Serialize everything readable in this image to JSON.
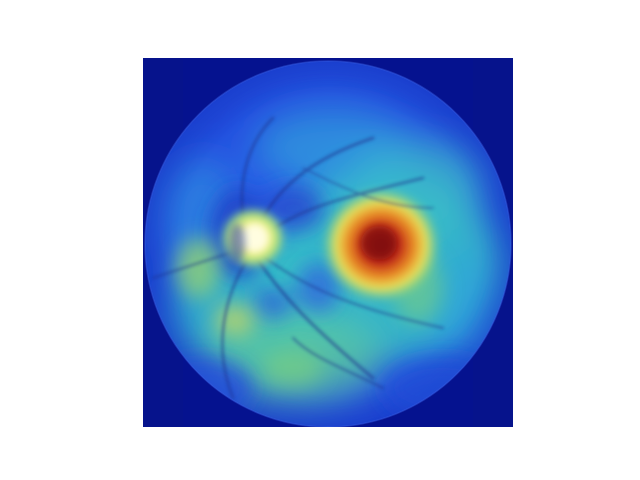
{
  "figure": {
    "background_color": "#ffffff",
    "image": {
      "kind": "retinal fundus heatmap overlay",
      "colormap": "jet",
      "colors": {
        "outer_background": "#05128f",
        "fundus_base": "#1f46d8",
        "low": "#2a5ef2",
        "mid": "#35c4c4",
        "mid_high": "#7fd27a",
        "high": "#e8e35a",
        "peak": "#c0261a",
        "optic_disc_center": "#fffde0",
        "vessel": "#1a2f8a"
      },
      "features": [
        "optic-disc",
        "macula-hotspot",
        "blood-vessels",
        "fundus-circle"
      ]
    }
  }
}
